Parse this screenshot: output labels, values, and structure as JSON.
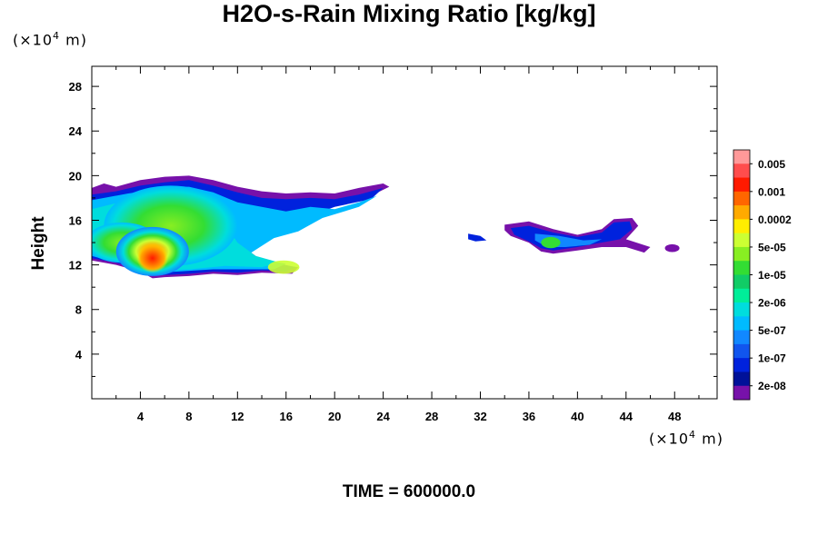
{
  "chart_data": {
    "type": "heatmap",
    "title": "H2O-s-Rain Mixing Ratio [kg/kg]",
    "xlabel": "",
    "ylabel": "Height",
    "x_unit": "(×10⁴ m)",
    "y_unit": "(×10⁴ m)",
    "xlim": [
      0,
      51.5
    ],
    "ylim": [
      0,
      29.8
    ],
    "x_ticks": [
      4,
      8,
      12,
      16,
      20,
      24,
      28,
      32,
      36,
      40,
      44,
      48
    ],
    "y_ticks": [
      4,
      8,
      12,
      16,
      20,
      24,
      28
    ],
    "grid": false,
    "colorbar": {
      "labels": [
        "0.005",
        "0.001",
        "0.0002",
        "5e-05",
        "1e-05",
        "2e-06",
        "5e-07",
        "1e-07",
        "2e-08"
      ],
      "colors": [
        "#ff9999",
        "#ff4d4d",
        "#ff1a00",
        "#ff6600",
        "#ffaa00",
        "#ffee00",
        "#ccff33",
        "#88ee22",
        "#33dd33",
        "#11cc66",
        "#00ee99",
        "#00dddd",
        "#00bbff",
        "#1188ff",
        "#1155ee",
        "#0022dd",
        "#001199",
        "#7711aa"
      ]
    },
    "regions": [
      {
        "name": "left-cloud",
        "x_range": [
          0,
          24.5
        ],
        "y_range": [
          10.8,
          20.0
        ],
        "peak": "0.001",
        "peak_at": [
          5,
          12.5
        ]
      },
      {
        "name": "right-cloud",
        "x_range": [
          31,
          48.5
        ],
        "y_range": [
          13.0,
          16.2
        ],
        "peak": "1e-05",
        "peak_at": [
          37.8,
          13.8
        ]
      }
    ]
  },
  "footer": {
    "time_label": "TIME = 600000.0"
  }
}
